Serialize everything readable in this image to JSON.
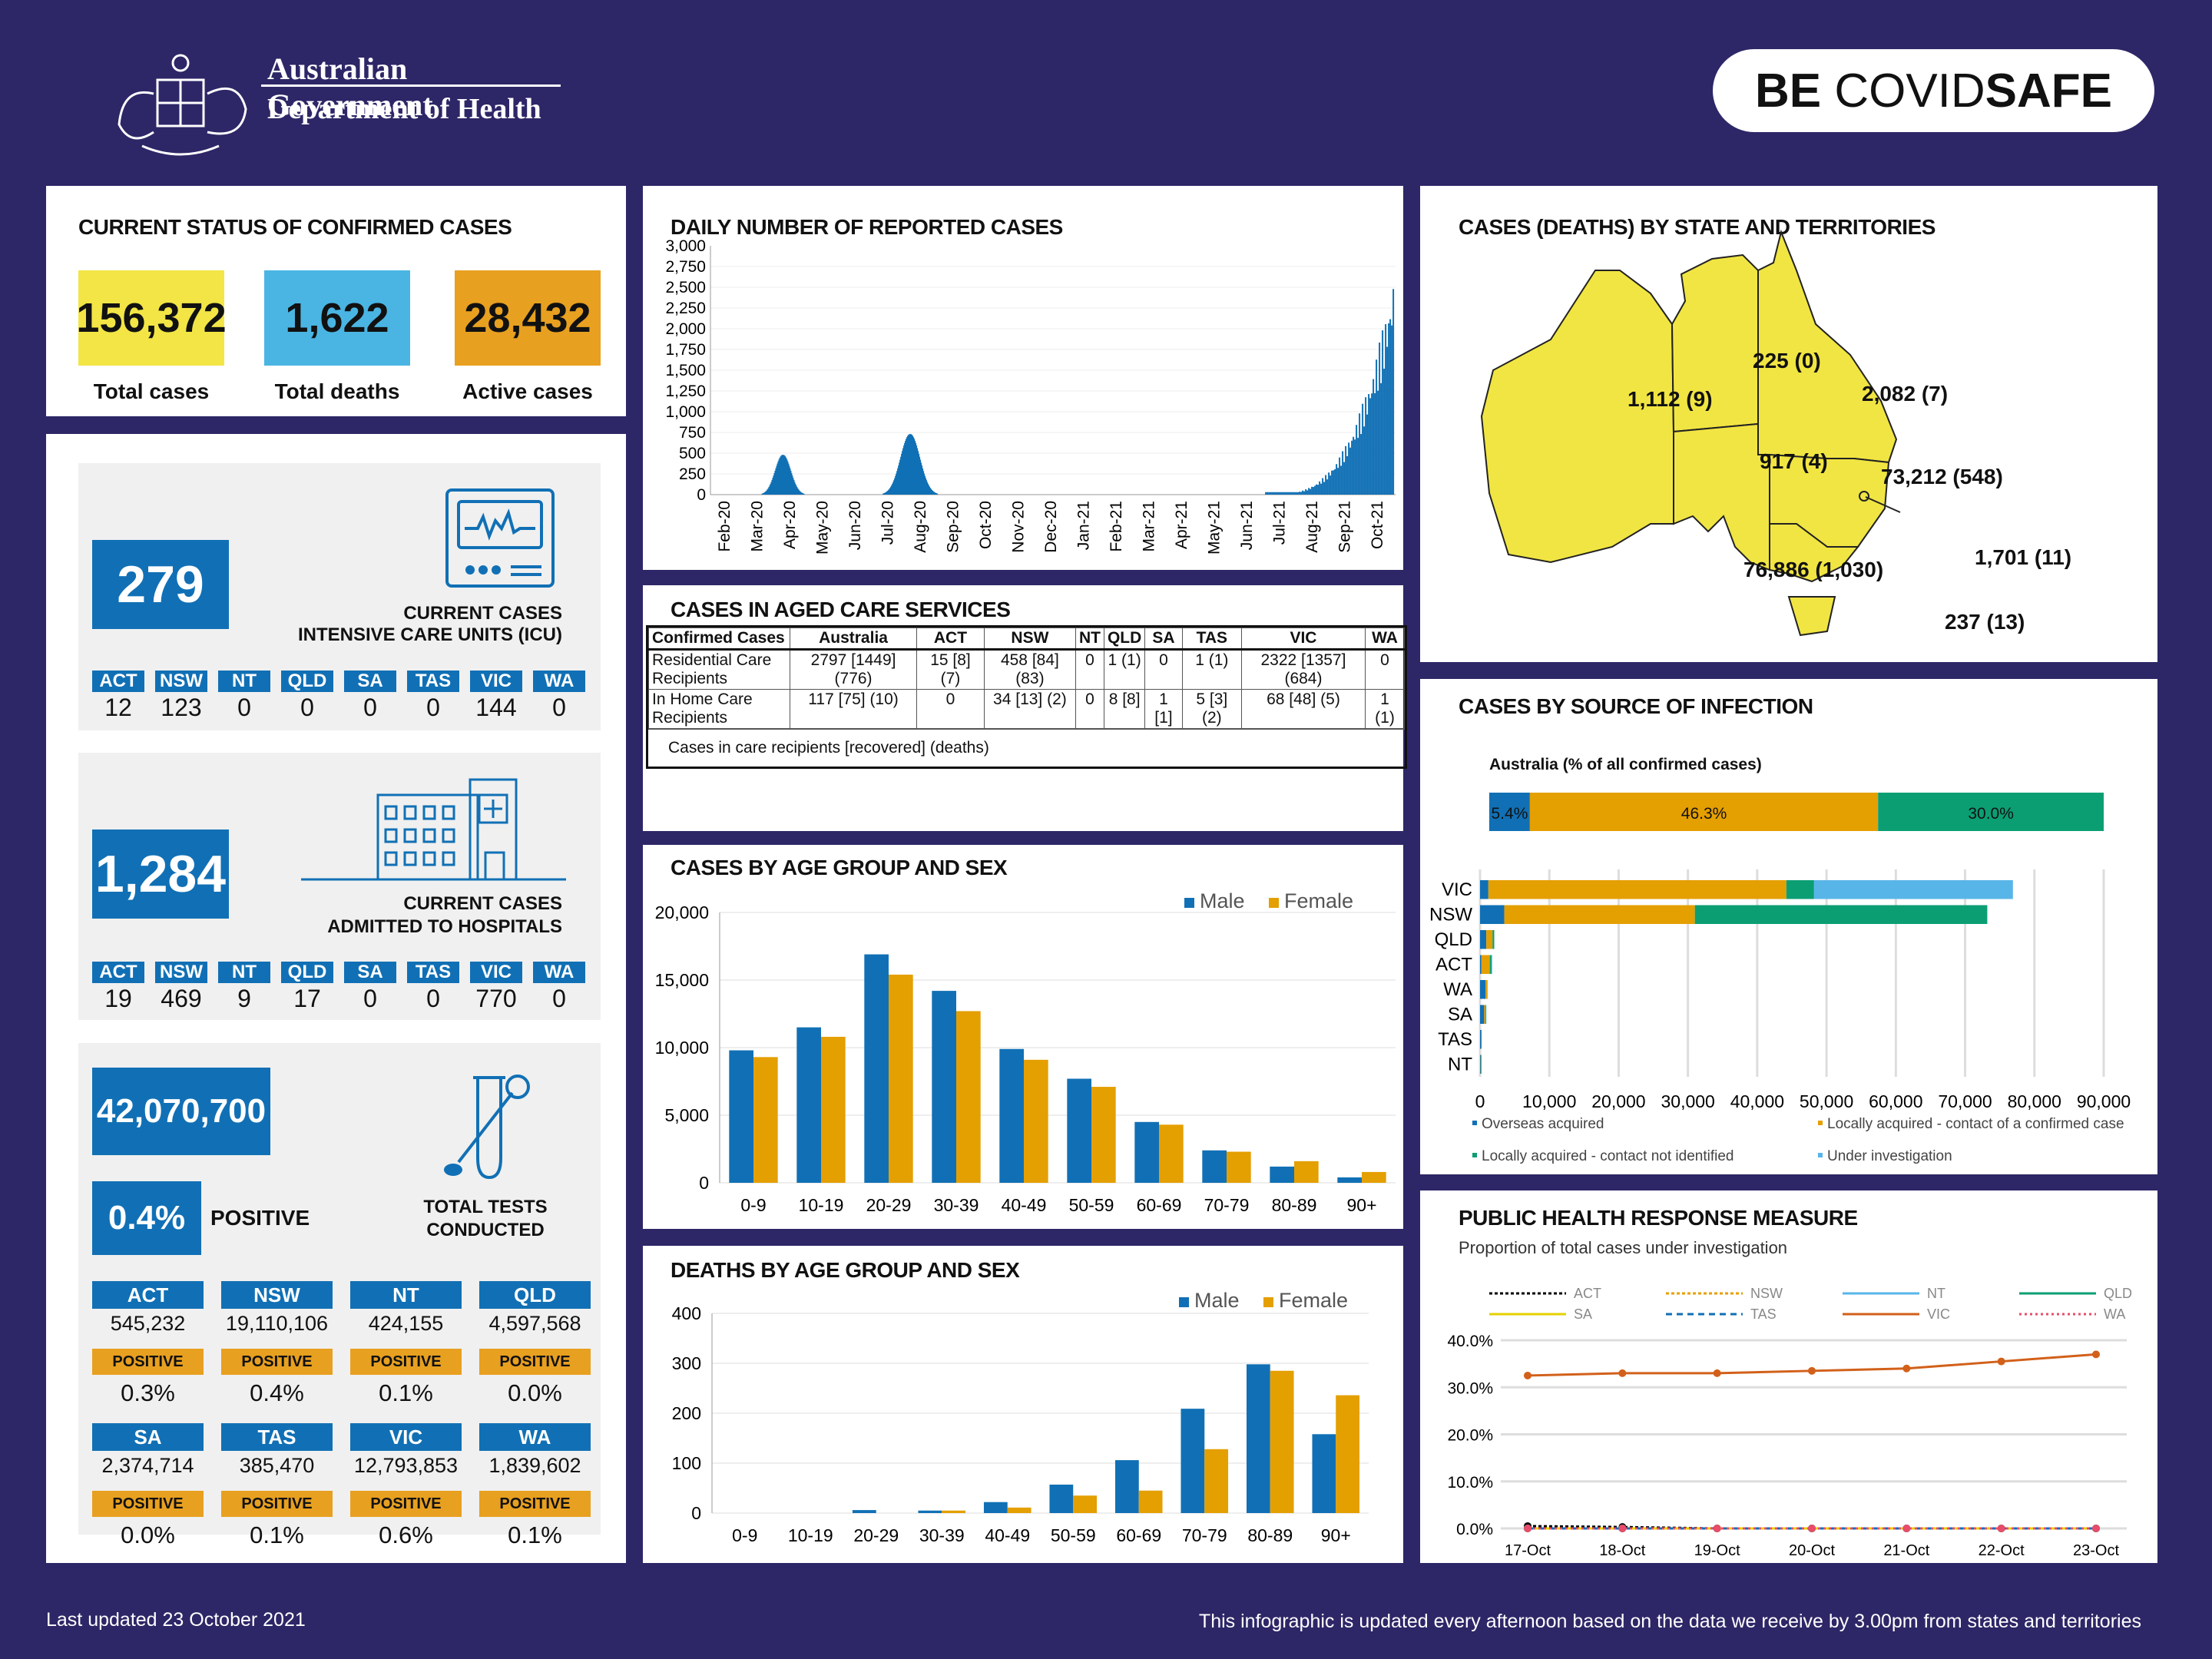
{
  "header": {
    "gov": "Australian Government",
    "dept": "Department of Health",
    "brand_a": "BE ",
    "brand_b": "COVID",
    "brand_c": "SAFE"
  },
  "status": {
    "title": "CURRENT STATUS OF CONFIRMED CASES",
    "cards": [
      {
        "value": "156,372",
        "label": "Total cases",
        "color": "#f2e545"
      },
      {
        "value": "1,622",
        "label": "Total deaths",
        "color": "#4ab5e3"
      },
      {
        "value": "28,432",
        "label": "Active cases",
        "color": "#e8a020"
      }
    ]
  },
  "icu": {
    "value": "279",
    "label1": "CURRENT CASES",
    "label2": "INTENSIVE CARE UNITS (ICU)",
    "states": [
      "ACT",
      "NSW",
      "NT",
      "QLD",
      "SA",
      "TAS",
      "VIC",
      "WA"
    ],
    "values": [
      "12",
      "123",
      "0",
      "0",
      "0",
      "0",
      "144",
      "0"
    ]
  },
  "hosp": {
    "value": "1,284",
    "label1": "CURRENT CASES",
    "label2": "ADMITTED TO HOSPITALS",
    "states": [
      "ACT",
      "NSW",
      "NT",
      "QLD",
      "SA",
      "TAS",
      "VIC",
      "WA"
    ],
    "values": [
      "19",
      "469",
      "9",
      "17",
      "0",
      "0",
      "770",
      "0"
    ]
  },
  "tests": {
    "value": "42,070,700",
    "pct": "0.4%",
    "pct_label": "POSITIVE",
    "label1": "TOTAL TESTS",
    "label2": "CONDUCTED",
    "pos_label": "POSITIVE",
    "rows": [
      [
        {
          "s": "ACT",
          "v": "545,232",
          "p": "0.3%"
        },
        {
          "s": "NSW",
          "v": "19,110,106",
          "p": "0.4%"
        },
        {
          "s": "NT",
          "v": "424,155",
          "p": "0.1%"
        },
        {
          "s": "QLD",
          "v": "4,597,568",
          "p": "0.0%"
        }
      ],
      [
        {
          "s": "SA",
          "v": "2,374,714",
          "p": "0.0%"
        },
        {
          "s": "TAS",
          "v": "385,470",
          "p": "0.1%"
        },
        {
          "s": "VIC",
          "v": "12,793,853",
          "p": "0.6%"
        },
        {
          "s": "WA",
          "v": "1,839,602",
          "p": "0.1%"
        }
      ]
    ]
  },
  "daily": {
    "title": "DAILY NUMBER OF REPORTED CASES",
    "yticks": [
      "3,000",
      "2,750",
      "2,500",
      "2,250",
      "2,000",
      "1,750",
      "1,500",
      "1,250",
      "1,000",
      "750",
      "500",
      "250",
      "0"
    ],
    "months": [
      "Feb-20",
      "Mar-20",
      "Apr-20",
      "May-20",
      "Jun-20",
      "Jul-20",
      "Aug-20",
      "Sep-20",
      "Oct-20",
      "Nov-20",
      "Dec-20",
      "Jan-21",
      "Feb-21",
      "Mar-21",
      "Apr-21",
      "May-21",
      "Jun-21",
      "Jul-21",
      "Aug-21",
      "Sep-21",
      "Oct-21"
    ]
  },
  "aged": {
    "title": "CASES IN AGED CARE SERVICES",
    "headers": [
      "Confirmed Cases",
      "Australia",
      "ACT",
      "NSW",
      "NT",
      "QLD",
      "SA",
      "TAS",
      "VIC",
      "WA"
    ],
    "rows": [
      [
        "Residential Care Recipients",
        "2797 [1449] (776)",
        "15 [8] (7)",
        "458 [84] (83)",
        "0",
        "1 (1)",
        "0",
        "1 (1)",
        "2322 [1357] (684)",
        "0"
      ],
      [
        "In Home Care Recipients",
        "117 [75] (10)",
        "0",
        "34 [13] (2)",
        "0",
        "8 [8]",
        "1 [1]",
        "5 [3] (2)",
        "68 [48] (5)",
        "1 (1)"
      ]
    ],
    "note": "Cases in care recipients [recovered] (deaths)"
  },
  "map": {
    "title": "CASES (DEATHS) BY STATE AND TERRITORIES",
    "labels": {
      "wa": "1,112 (9)",
      "nt": "225 (0)",
      "qld": "2,082 (7)",
      "sa": "917 (4)",
      "nsw": "73,212 (548)",
      "act": "1,701 (11)",
      "vic": "76,886 (1,030)",
      "tas": "237 (13)"
    }
  },
  "source": {
    "title": "CASES BY SOURCE OF INFECTION",
    "subtitle": "Australia (% of all confirmed cases)",
    "aus_pcts": [
      "5.4%",
      "46.3%",
      "30.0%"
    ],
    "legend": [
      "Overseas acquired",
      "Locally acquired - contact of a confirmed case",
      "Locally acquired - contact not identified",
      "Under investigation"
    ],
    "colors": [
      "#1170b5",
      "#e49f00",
      "#0b9e73",
      "#58b5e8"
    ],
    "xticks": [
      "0",
      "10,000",
      "20,000",
      "30,000",
      "40,000",
      "50,000",
      "60,000",
      "70,000",
      "80,000",
      "90,000"
    ]
  },
  "phr": {
    "title": "PUBLIC HEALTH RESPONSE MEASURE",
    "subtitle": "Proportion of total cases under investigation",
    "legend": [
      "ACT",
      "NSW",
      "NT",
      "QLD",
      "SA",
      "TAS",
      "VIC",
      "WA"
    ],
    "yticks": [
      "40.0%",
      "30.0%",
      "20.0%",
      "10.0%",
      "0.0%"
    ],
    "xticks": [
      "17-Oct",
      "18-Oct",
      "19-Oct",
      "20-Oct",
      "21-Oct",
      "22-Oct",
      "23-Oct"
    ]
  },
  "age": {
    "title": "CASES BY AGE GROUP AND SEX",
    "male": "Male",
    "female": "Female"
  },
  "deaths": {
    "title": "DEATHS BY AGE GROUP AND SEX",
    "male": "Male",
    "female": "Female"
  },
  "footer": {
    "left": "Last updated 23 October 2021",
    "right": "This infographic is updated every afternoon based on the data we receive by 3.00pm from states and territories"
  },
  "chart_data": [
    {
      "type": "bar",
      "title": "CASES BY AGE GROUP AND SEX",
      "categories": [
        "0-9",
        "10-19",
        "20-29",
        "30-39",
        "40-49",
        "50-59",
        "60-69",
        "70-79",
        "80-89",
        "90+"
      ],
      "ylim": [
        0,
        20000
      ],
      "yticks": [
        "20,000",
        "15,000",
        "10,000",
        "5,000",
        "0"
      ],
      "series": [
        {
          "name": "Male",
          "values": [
            9800,
            11500,
            16900,
            14200,
            9900,
            7700,
            4500,
            2400,
            1200,
            400
          ]
        },
        {
          "name": "Female",
          "values": [
            9300,
            10800,
            15400,
            12700,
            9100,
            7100,
            4300,
            2300,
            1600,
            800
          ]
        }
      ]
    },
    {
      "type": "bar",
      "title": "DEATHS BY AGE GROUP AND SEX",
      "categories": [
        "0-9",
        "10-19",
        "20-29",
        "30-39",
        "40-49",
        "50-59",
        "60-69",
        "70-79",
        "80-89",
        "90+"
      ],
      "ylim": [
        0,
        400
      ],
      "yticks": [
        "400",
        "300",
        "200",
        "100",
        "0"
      ],
      "series": [
        {
          "name": "Male",
          "values": [
            0,
            0,
            6,
            5,
            22,
            57,
            106,
            209,
            298,
            158
          ]
        },
        {
          "name": "Female",
          "values": [
            0,
            0,
            0,
            5,
            11,
            35,
            45,
            128,
            285,
            236
          ]
        }
      ]
    },
    {
      "type": "bar",
      "title": "CASES BY SOURCE OF INFECTION",
      "categories": [
        "VIC",
        "NSW",
        "QLD",
        "ACT",
        "WA",
        "SA",
        "TAS",
        "NT"
      ],
      "xlim": [
        0,
        90000
      ],
      "series": [
        {
          "name": "Overseas acquired",
          "values": [
            1200,
            3500,
            900,
            200,
            800,
            600,
            200,
            100
          ]
        },
        {
          "name": "Locally acquired - contact of a confirmed case",
          "values": [
            43000,
            27500,
            900,
            1200,
            200,
            200,
            30,
            60
          ]
        },
        {
          "name": "Locally acquired - contact not identified",
          "values": [
            4000,
            42200,
            250,
            250,
            60,
            100,
            10,
            60
          ]
        },
        {
          "name": "Under investigation",
          "values": [
            28700,
            0,
            0,
            100,
            0,
            0,
            0,
            0
          ]
        }
      ]
    },
    {
      "type": "line",
      "title": "PUBLIC HEALTH RESPONSE MEASURE",
      "x": [
        "17-Oct",
        "18-Oct",
        "19-Oct",
        "20-Oct",
        "21-Oct",
        "22-Oct",
        "23-Oct"
      ],
      "ylim": [
        0,
        40
      ],
      "series": [
        {
          "name": "VIC",
          "values": [
            32.5,
            33.0,
            33.0,
            33.5,
            34.0,
            35.5,
            37.0
          ]
        },
        {
          "name": "ACT",
          "values": [
            0.5,
            0.3,
            0,
            0,
            0,
            0,
            0
          ]
        },
        {
          "name": "NSW",
          "values": [
            0,
            0,
            0,
            0,
            0,
            0,
            0
          ]
        },
        {
          "name": "NT",
          "values": [
            0,
            0,
            0,
            0,
            0,
            0,
            0
          ]
        },
        {
          "name": "QLD",
          "values": [
            0,
            0,
            0,
            0,
            0,
            0,
            0
          ]
        },
        {
          "name": "SA",
          "values": [
            0,
            0,
            0,
            0,
            0,
            0,
            0
          ]
        },
        {
          "name": "TAS",
          "values": [
            0,
            0,
            0,
            0,
            0,
            0,
            0
          ]
        },
        {
          "name": "WA",
          "values": [
            0,
            0,
            0,
            0,
            0,
            0,
            0
          ]
        }
      ]
    },
    {
      "type": "bar",
      "title": "DAILY NUMBER OF REPORTED CASES",
      "ylim": [
        0,
        3000
      ],
      "peaks": [
        {
          "month": "Apr-20",
          "value": 480
        },
        {
          "month": "Aug-20",
          "value": 730
        },
        {
          "month": "Oct-21",
          "value": 2750
        }
      ]
    }
  ]
}
